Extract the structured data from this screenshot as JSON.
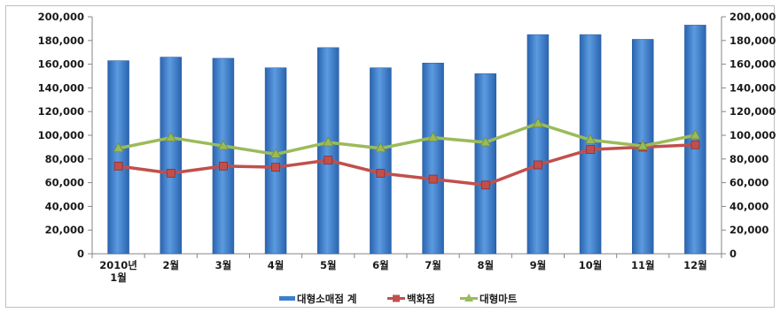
{
  "chart_data": {
    "type": "bar",
    "categories": [
      "2010년\n1월",
      "2월",
      "3월",
      "4월",
      "5월",
      "6월",
      "7월",
      "8월",
      "9월",
      "10월",
      "11월",
      "12월"
    ],
    "series": [
      {
        "name": "대형소매점 계",
        "type": "bar",
        "color": "#3b7fd0",
        "values": [
          163000,
          166000,
          165000,
          157000,
          174000,
          157000,
          161000,
          152000,
          185000,
          185000,
          181000,
          193000
        ]
      },
      {
        "name": "백화점",
        "type": "line",
        "marker": "square",
        "color": "#c0504d",
        "values": [
          74000,
          68000,
          74000,
          73000,
          79000,
          68000,
          63000,
          58000,
          75000,
          88000,
          90000,
          92000
        ]
      },
      {
        "name": "대형마트",
        "type": "line",
        "marker": "triangle",
        "color": "#9bbb59",
        "values": [
          89000,
          98000,
          91000,
          84000,
          94000,
          89000,
          98000,
          94000,
          110000,
          96000,
          91000,
          100000
        ]
      }
    ],
    "ylim": [
      0,
      200000
    ],
    "yticks": [
      0,
      20000,
      40000,
      60000,
      80000,
      100000,
      120000,
      140000,
      160000,
      180000,
      200000
    ],
    "ytick_labels": [
      "0",
      "20,000",
      "40,000",
      "60,000",
      "80,000",
      "100,000",
      "120,000",
      "140,000",
      "160,000",
      "180,000",
      "200,000"
    ],
    "y2_axis": true,
    "grid": false,
    "legend": "bottom"
  }
}
